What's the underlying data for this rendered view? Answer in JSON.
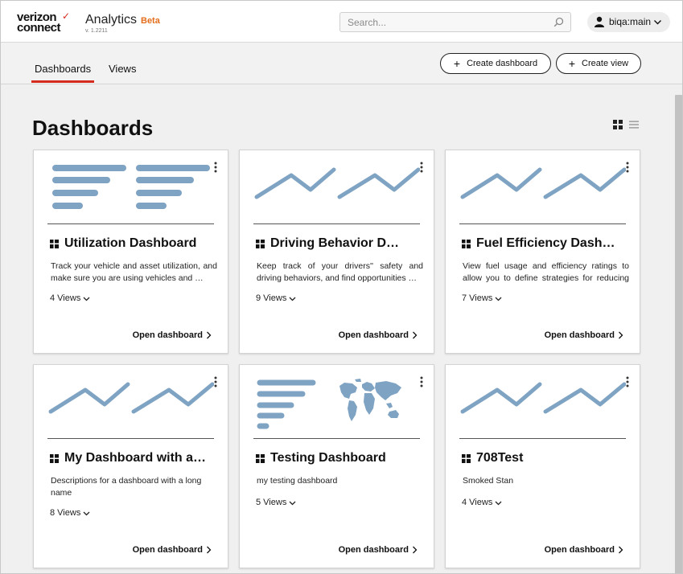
{
  "header": {
    "logo_line1": "verizon",
    "logo_line2": "connect",
    "app_title": "Analytics",
    "app_badge": "Beta",
    "version": "v. 1.2211",
    "search_placeholder": "Search...",
    "user_name": "biqa:main"
  },
  "nav": {
    "tabs": [
      {
        "label": "Dashboards",
        "active": true
      },
      {
        "label": "Views",
        "active": false
      }
    ],
    "create_dashboard_label": "Create dashboard",
    "create_view_label": "Create view"
  },
  "main": {
    "title": "Dashboards",
    "open_label": "Open dashboard",
    "cards": [
      {
        "title": "Utilization Dashboard",
        "description": "Track your vehicle and asset utilization, and make sure you are using vehicles and …",
        "views": "4 Views",
        "thumbnail": "bars-pair-icon"
      },
      {
        "title": "Driving Behavior D…",
        "description": "Keep track of your drivers'' safety and driving behaviors, and find opportunities …",
        "views": "9 Views",
        "thumbnail": "line-pair-icon"
      },
      {
        "title": "Fuel Efficiency Dash…",
        "description": "View fuel usage and efficiency ratings to allow you to define strategies for reducing …",
        "views": "7 Views",
        "thumbnail": "line-pair-icon"
      },
      {
        "title": "My Dashboard with a…",
        "description": "Descriptions for a dashboard with a long name",
        "views": "8 Views",
        "thumbnail": "line-pair-icon"
      },
      {
        "title": "Testing Dashboard",
        "description": "my testing dashboard",
        "views": "5 Views",
        "thumbnail": "bars-and-map-icon"
      },
      {
        "title": "708Test",
        "description": "Smoked Stan",
        "views": "4 Views",
        "thumbnail": "line-pair-icon"
      }
    ]
  },
  "colors": {
    "accent": "#d52b1e",
    "beta": "#e36d1b",
    "thumbnail": "#7fa3c3"
  }
}
